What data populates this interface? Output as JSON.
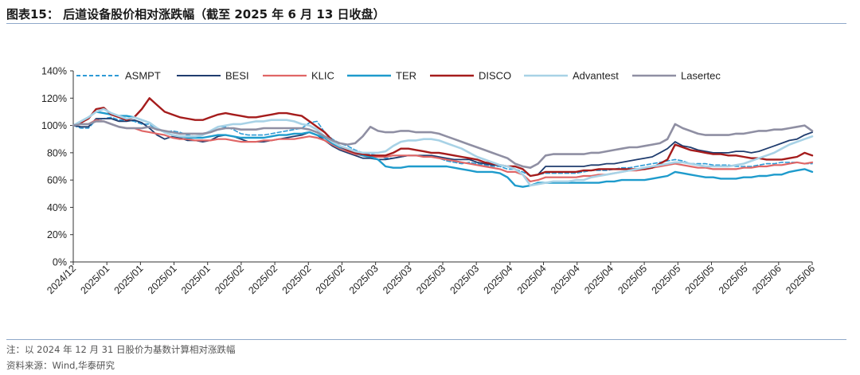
{
  "header": {
    "title": "图表15：    后道设备股价相对涨跌幅（截至 2025 年 6 月 13 日收盘）"
  },
  "footer": {
    "note": "注：以 2024 年 12 月 31 日股价为基数计算相对涨跌幅",
    "source": "资料来源：Wind,华泰研究"
  },
  "chart_data": {
    "type": "line",
    "title": "",
    "xlabel": "",
    "ylabel": "",
    "ylim": [
      0,
      140
    ],
    "y_ticks": [
      "0%",
      "20%",
      "40%",
      "60%",
      "80%",
      "100%",
      "120%",
      "140%"
    ],
    "x_tick_labels": [
      "2024/12",
      "2025/01",
      "2025/01",
      "2025/01",
      "2025/01",
      "2025/02",
      "2025/02",
      "2025/02",
      "2025/02",
      "2025/03",
      "2025/03",
      "2025/03",
      "2025/03",
      "2025/04",
      "2025/04",
      "2025/04",
      "2025/04",
      "2025/05",
      "2025/05",
      "2025/05",
      "2025/05",
      "2025/06",
      "2025/06"
    ],
    "legend_position": "top",
    "grid": false,
    "series": [
      {
        "name": "ASMPT",
        "color": "#2e9bd6",
        "dash": true,
        "width": 1.6,
        "values": [
          100,
          98,
          98,
          104,
          105,
          106,
          104,
          104,
          103,
          101,
          101,
          97,
          95,
          96,
          95,
          93,
          92,
          93,
          95,
          99,
          99,
          97,
          94,
          93,
          93,
          93,
          94,
          95,
          96,
          97,
          98,
          102,
          103,
          95,
          90,
          87,
          85,
          82,
          80,
          79,
          78,
          76,
          76,
          77,
          78,
          78,
          77,
          77,
          76,
          74,
          73,
          72,
          73,
          72,
          71,
          70,
          70,
          68,
          68,
          66,
          63,
          64,
          65,
          65,
          65,
          65,
          65,
          66,
          67,
          67,
          67,
          68,
          69,
          69,
          70,
          71,
          72,
          73,
          74,
          75,
          74,
          72,
          72,
          72,
          71,
          71,
          71,
          70,
          70,
          70,
          71,
          72,
          72,
          73,
          73,
          73,
          72,
          72
        ]
      },
      {
        "name": "BESI",
        "color": "#1f3c6e",
        "dash": false,
        "width": 1.8,
        "values": [
          100,
          99,
          99,
          105,
          105,
          105,
          103,
          103,
          104,
          102,
          98,
          93,
          90,
          92,
          91,
          89,
          89,
          88,
          89,
          92,
          93,
          92,
          90,
          88,
          88,
          88,
          89,
          90,
          91,
          92,
          93,
          95,
          93,
          89,
          85,
          82,
          80,
          78,
          76,
          76,
          75,
          75,
          76,
          77,
          78,
          78,
          78,
          78,
          77,
          76,
          75,
          75,
          75,
          73,
          72,
          71,
          71,
          70,
          70,
          68,
          63,
          64,
          70,
          70,
          70,
          70,
          70,
          70,
          71,
          71,
          72,
          72,
          73,
          74,
          75,
          76,
          77,
          80,
          83,
          88,
          85,
          84,
          82,
          81,
          80,
          80,
          80,
          81,
          81,
          80,
          81,
          83,
          85,
          87,
          89,
          90,
          93,
          95
        ]
      },
      {
        "name": "KLIC",
        "color": "#e06666",
        "dash": false,
        "width": 2.2,
        "values": [
          100,
          101,
          101,
          104,
          103,
          101,
          99,
          98,
          98,
          96,
          95,
          94,
          93,
          91,
          90,
          90,
          89,
          89,
          89,
          90,
          90,
          89,
          88,
          88,
          88,
          89,
          89,
          90,
          90,
          90,
          91,
          92,
          91,
          89,
          86,
          83,
          81,
          79,
          78,
          77,
          77,
          77,
          78,
          78,
          78,
          78,
          77,
          77,
          76,
          75,
          74,
          73,
          72,
          71,
          70,
          69,
          68,
          66,
          66,
          64,
          59,
          60,
          62,
          62,
          62,
          62,
          62,
          63,
          63,
          64,
          64,
          65,
          66,
          67,
          67,
          68,
          69,
          70,
          71,
          72,
          71,
          70,
          69,
          69,
          68,
          68,
          68,
          68,
          69,
          69,
          70,
          70,
          71,
          71,
          72,
          73,
          72,
          73
        ]
      },
      {
        "name": "TER",
        "color": "#1e9bcc",
        "dash": false,
        "width": 2.4,
        "values": [
          100,
          103,
          106,
          110,
          109,
          108,
          107,
          107,
          106,
          104,
          102,
          98,
          95,
          93,
          92,
          91,
          91,
          91,
          92,
          93,
          93,
          92,
          91,
          91,
          91,
          91,
          92,
          93,
          93,
          94,
          94,
          95,
          93,
          91,
          87,
          84,
          82,
          80,
          78,
          77,
          75,
          70,
          69,
          69,
          70,
          70,
          70,
          70,
          70,
          70,
          69,
          68,
          67,
          66,
          66,
          66,
          65,
          62,
          56,
          55,
          56,
          58,
          58,
          58,
          58,
          58,
          58,
          58,
          58,
          58,
          59,
          59,
          60,
          60,
          60,
          60,
          61,
          62,
          63,
          66,
          65,
          64,
          63,
          62,
          62,
          61,
          61,
          61,
          62,
          62,
          63,
          63,
          64,
          64,
          66,
          67,
          68,
          66
        ]
      },
      {
        "name": "DISCO",
        "color": "#a51c1c",
        "dash": false,
        "width": 2.4,
        "values": [
          100,
          102,
          105,
          112,
          113,
          108,
          106,
          104,
          106,
          112,
          120,
          115,
          110,
          108,
          106,
          105,
          104,
          104,
          106,
          108,
          109,
          108,
          107,
          106,
          106,
          107,
          108,
          109,
          109,
          108,
          107,
          103,
          99,
          95,
          89,
          85,
          82,
          80,
          79,
          78,
          78,
          78,
          80,
          83,
          83,
          82,
          81,
          80,
          80,
          79,
          78,
          77,
          76,
          75,
          73,
          72,
          71,
          70,
          70,
          68,
          63,
          64,
          66,
          66,
          66,
          66,
          66,
          67,
          67,
          68,
          68,
          68,
          68,
          68,
          68,
          68,
          69,
          72,
          75,
          86,
          84,
          82,
          81,
          80,
          79,
          79,
          78,
          78,
          77,
          76,
          76,
          75,
          75,
          75,
          76,
          77,
          80,
          78
        ]
      },
      {
        "name": "Advantest",
        "color": "#a8d2e6",
        "dash": false,
        "width": 2.6,
        "values": [
          100,
          103,
          106,
          110,
          112,
          109,
          107,
          105,
          106,
          104,
          102,
          98,
          95,
          93,
          92,
          92,
          92,
          93,
          96,
          99,
          100,
          101,
          101,
          102,
          103,
          103,
          104,
          104,
          104,
          103,
          101,
          100,
          97,
          92,
          88,
          85,
          83,
          81,
          80,
          80,
          80,
          81,
          85,
          88,
          89,
          89,
          90,
          90,
          89,
          87,
          85,
          83,
          80,
          77,
          75,
          73,
          71,
          70,
          68,
          64,
          56,
          57,
          58,
          59,
          59,
          59,
          60,
          60,
          62,
          63,
          64,
          65,
          66,
          67,
          68,
          69,
          70,
          71,
          72,
          73,
          73,
          72,
          71,
          70,
          70,
          70,
          70,
          71,
          72,
          74,
          76,
          78,
          80,
          83,
          86,
          88,
          90,
          92
        ]
      },
      {
        "name": "Lasertec",
        "color": "#8f8fa3",
        "dash": false,
        "width": 2.6,
        "values": [
          100,
          101,
          101,
          103,
          103,
          101,
          99,
          98,
          98,
          98,
          99,
          97,
          96,
          95,
          94,
          94,
          94,
          94,
          95,
          97,
          98,
          98,
          97,
          97,
          97,
          98,
          98,
          98,
          98,
          98,
          98,
          97,
          95,
          92,
          89,
          87,
          86,
          87,
          92,
          99,
          96,
          95,
          95,
          96,
          96,
          95,
          95,
          95,
          94,
          92,
          90,
          88,
          86,
          84,
          82,
          80,
          78,
          76,
          72,
          70,
          69,
          72,
          78,
          79,
          79,
          79,
          79,
          79,
          80,
          80,
          81,
          82,
          83,
          84,
          84,
          85,
          86,
          87,
          90,
          101,
          98,
          96,
          94,
          93,
          93,
          93,
          93,
          94,
          94,
          95,
          96,
          96,
          97,
          97,
          98,
          99,
          100,
          96
        ]
      }
    ]
  }
}
